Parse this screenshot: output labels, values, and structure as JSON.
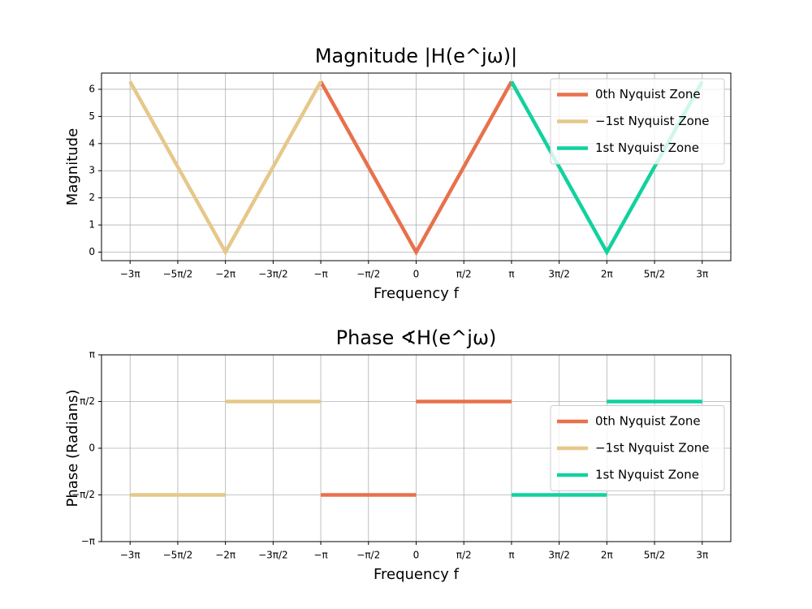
{
  "chart_data": [
    {
      "type": "line",
      "title": "Magnitude |H(e^jω)|",
      "xlabel": "Frequency f",
      "ylabel": "Magnitude",
      "series": [
        {
          "name": "0th Nyquist Zone",
          "color": "#e8714c",
          "x": [
            -3.142,
            0,
            3.142
          ],
          "values": [
            6.283,
            0,
            6.283
          ]
        },
        {
          "name": "−1st Nyquist Zone",
          "color": "#e5c88a",
          "x": [
            -9.425,
            -6.283,
            -3.142
          ],
          "values": [
            6.283,
            0,
            6.283
          ]
        },
        {
          "name": "1st Nyquist Zone",
          "color": "#10d29f",
          "x": [
            3.142,
            6.283,
            9.425
          ],
          "values": [
            6.283,
            0,
            6.283
          ]
        }
      ],
      "xlim": [
        -10.367,
        10.367
      ],
      "ylim": [
        -0.314,
        6.597
      ],
      "xticks": [
        {
          "value": -9.425,
          "label": "−3π"
        },
        {
          "value": -7.854,
          "label": "−5π/2"
        },
        {
          "value": -6.283,
          "label": "−2π"
        },
        {
          "value": -4.712,
          "label": "−3π/2"
        },
        {
          "value": -3.142,
          "label": "−π"
        },
        {
          "value": -1.571,
          "label": "−π/2"
        },
        0,
        {
          "value": 1.571,
          "label": "π/2"
        },
        {
          "value": 3.142,
          "label": "π"
        },
        {
          "value": 4.712,
          "label": "3π/2"
        },
        {
          "value": 6.283,
          "label": "2π"
        },
        {
          "value": 7.854,
          "label": "5π/2"
        },
        {
          "value": 9.425,
          "label": "3π"
        }
      ],
      "yticks": [
        0,
        1,
        2,
        3,
        4,
        5,
        6
      ],
      "grid": true,
      "legend": "upper right"
    },
    {
      "type": "line",
      "title": "Phase ∢H(e^jω)",
      "xlabel": "Frequency f",
      "ylabel": "Phase (Radians)",
      "series": [
        {
          "name": "0th Nyquist Zone",
          "color": "#e8714c",
          "x": [
            -3.142,
            0,
            0,
            0,
            3.142
          ],
          "values": [
            -1.571,
            -1.571,
            null,
            1.571,
            1.571
          ]
        },
        {
          "name": "−1st Nyquist Zone",
          "color": "#e5c88a",
          "x": [
            -9.425,
            -6.283,
            -6.283,
            -6.283,
            -3.142
          ],
          "values": [
            -1.571,
            -1.571,
            null,
            1.571,
            1.571
          ]
        },
        {
          "name": "1st Nyquist Zone",
          "color": "#10d29f",
          "x": [
            3.142,
            6.283,
            6.283,
            6.283,
            9.425
          ],
          "values": [
            -1.571,
            -1.571,
            null,
            1.571,
            1.571
          ]
        }
      ],
      "xlim": [
        -10.367,
        10.367
      ],
      "ylim": [
        -3.142,
        3.142
      ],
      "xticks": [
        {
          "value": -9.425,
          "label": "−3π"
        },
        {
          "value": -7.854,
          "label": "−5π/2"
        },
        {
          "value": -6.283,
          "label": "−2π"
        },
        {
          "value": -4.712,
          "label": "−3π/2"
        },
        {
          "value": -3.142,
          "label": "−π"
        },
        {
          "value": -1.571,
          "label": "−π/2"
        },
        0,
        {
          "value": 1.571,
          "label": "π/2"
        },
        {
          "value": 3.142,
          "label": "π"
        },
        {
          "value": 4.712,
          "label": "3π/2"
        },
        {
          "value": 6.283,
          "label": "2π"
        },
        {
          "value": 7.854,
          "label": "5π/2"
        },
        {
          "value": 9.425,
          "label": "3π"
        }
      ],
      "yticks": [
        {
          "value": -3.142,
          "label": "−π"
        },
        {
          "value": -1.571,
          "label": "−π/2"
        },
        0,
        {
          "value": 1.571,
          "label": "π/2"
        },
        {
          "value": 3.142,
          "label": "π"
        }
      ],
      "grid": true,
      "legend": "center right"
    }
  ]
}
